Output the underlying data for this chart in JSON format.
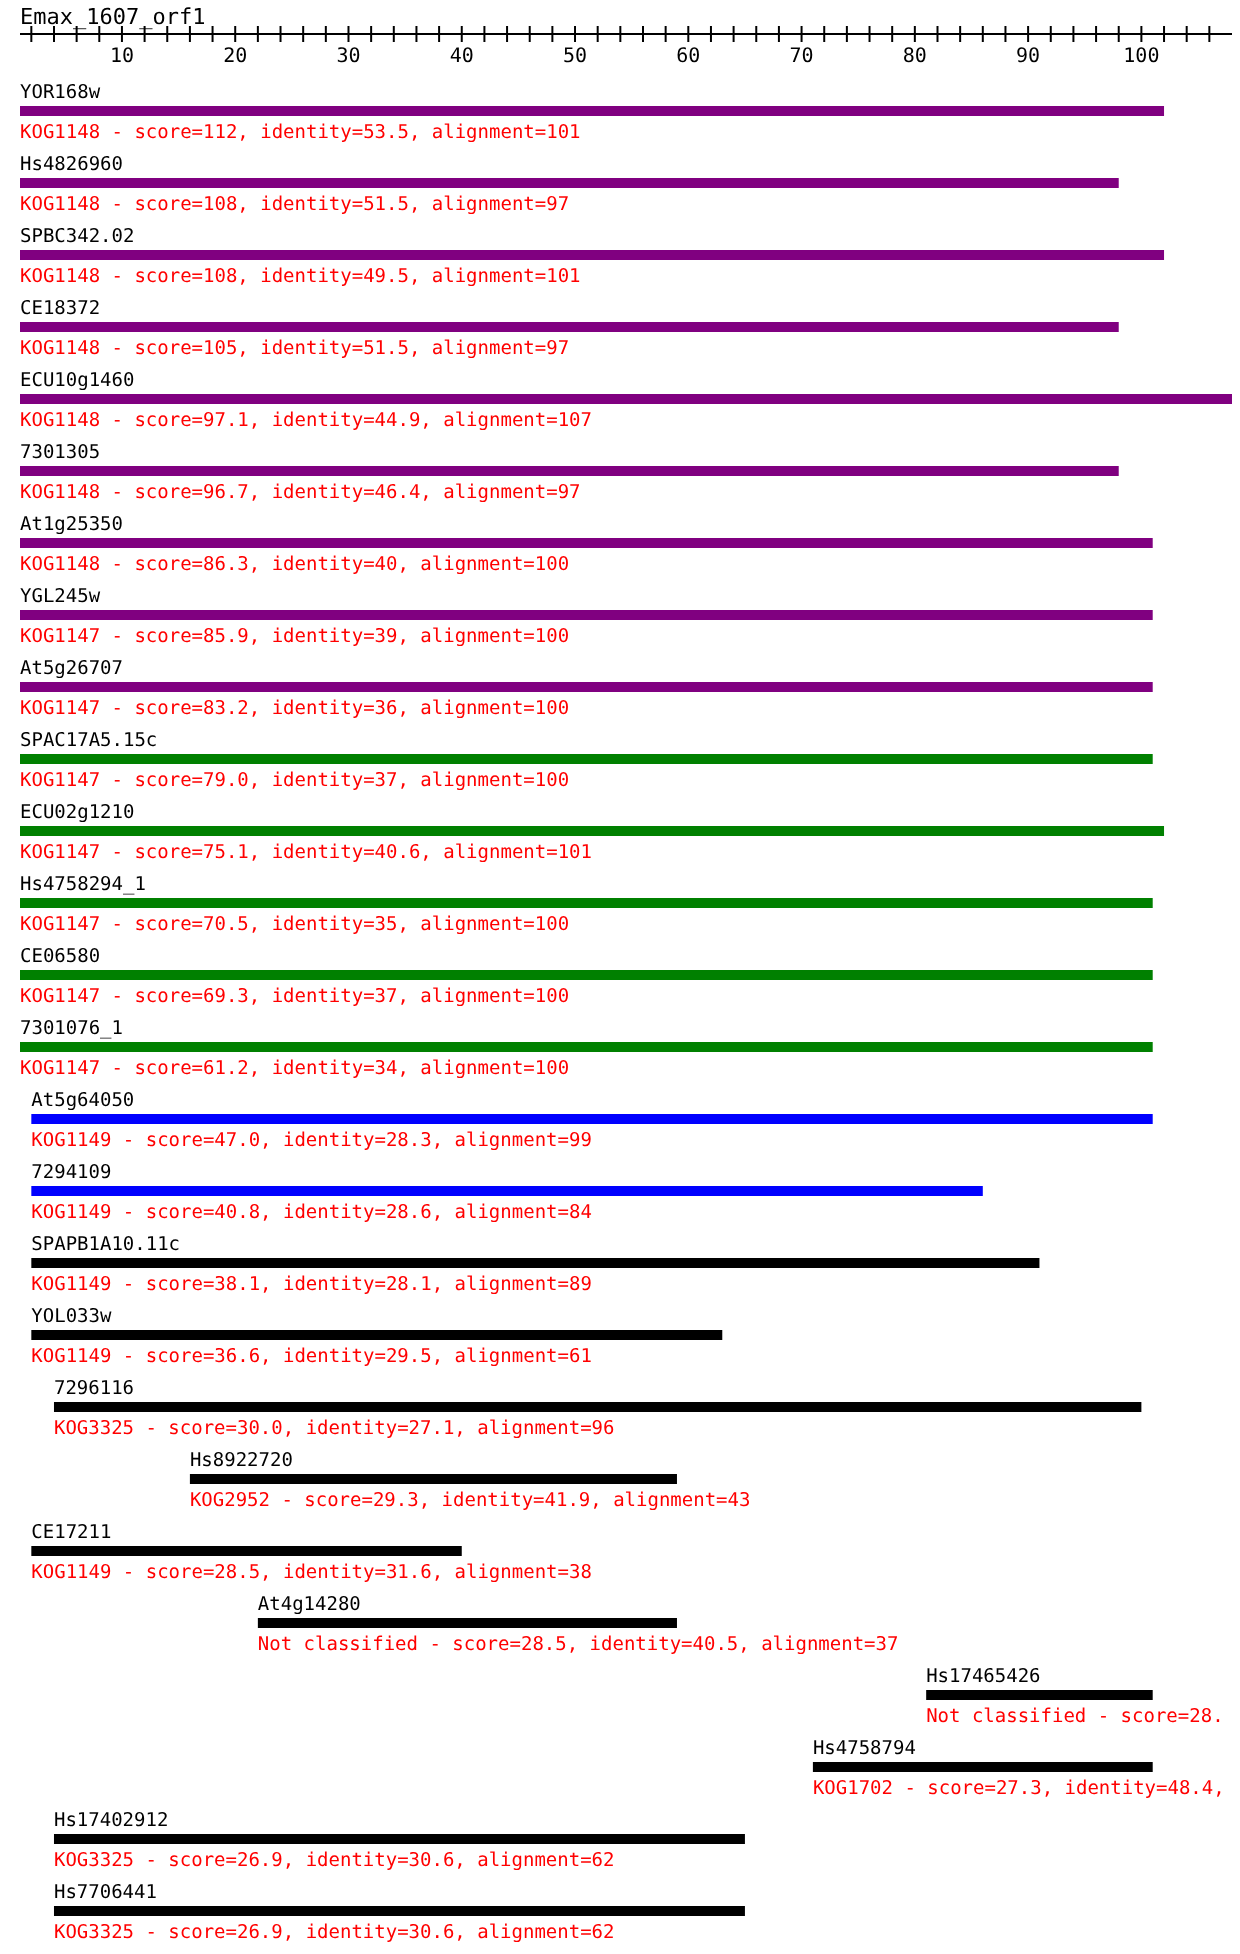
{
  "chart_data": {
    "type": "bar",
    "orientation": "horizontal",
    "title": "Emax_1607_orf1",
    "categories": [
      "YOR168w",
      "Hs4826960",
      "SPBC342.02",
      "CE18372",
      "ECU10g1460",
      "7301305",
      "At1g25350",
      "YGL245w",
      "At5g26707",
      "SPAC17A5.15c",
      "ECU02g1210",
      "Hs4758294_1",
      "CE06580",
      "7301076_1",
      "At5g64050",
      "7294109",
      "SPAPB1A10.11c",
      "YOL033w",
      "7296116",
      "Hs8922720",
      "CE17211",
      "At4g14280",
      "Hs17465426",
      "Hs4758794",
      "Hs17402912",
      "Hs7706441"
    ],
    "base": [
      1,
      1,
      1,
      1,
      1,
      1,
      1,
      1,
      1,
      1,
      1,
      1,
      1,
      1,
      2,
      2,
      2,
      2,
      4,
      16,
      2,
      22,
      81,
      71,
      4,
      4
    ],
    "values": [
      101,
      97,
      101,
      97,
      107,
      97,
      100,
      100,
      100,
      100,
      101,
      100,
      100,
      100,
      99,
      84,
      89,
      61,
      96,
      43,
      38,
      37,
      20,
      30,
      61,
      61
    ],
    "colors": [
      "#800080",
      "#800080",
      "#800080",
      "#800080",
      "#800080",
      "#800080",
      "#800080",
      "#800080",
      "#800080",
      "#008000",
      "#008000",
      "#008000",
      "#008000",
      "#008000",
      "#0000ff",
      "#0000ff",
      "#000000",
      "#000000",
      "#000000",
      "#000000",
      "#000000",
      "#000000",
      "#000000",
      "#000000",
      "#000000",
      "#000000"
    ],
    "annotations": [
      "KOG1148 - score=112, identity=53.5, alignment=101",
      "KOG1148 - score=108, identity=51.5, alignment=97",
      "KOG1148 - score=108, identity=49.5, alignment=101",
      "KOG1148 - score=105, identity=51.5, alignment=97",
      "KOG1148 - score=97.1, identity=44.9, alignment=107",
      "KOG1148 - score=96.7, identity=46.4, alignment=97",
      "KOG1148 - score=86.3, identity=40, alignment=100",
      "KOG1147 - score=85.9, identity=39, alignment=100",
      "KOG1147 - score=83.2, identity=36, alignment=100",
      "KOG1147 - score=79.0, identity=37, alignment=100",
      "KOG1147 - score=75.1, identity=40.6, alignment=101",
      "KOG1147 - score=70.5, identity=35, alignment=100",
      "KOG1147 - score=69.3, identity=37, alignment=100",
      "KOG1147 - score=61.2, identity=34, alignment=100",
      "KOG1149 - score=47.0, identity=28.3, alignment=99",
      "KOG1149 - score=40.8, identity=28.6, alignment=84",
      "KOG1149 - score=38.1, identity=28.1, alignment=89",
      "KOG1149 - score=36.6, identity=29.5, alignment=61",
      "KOG3325 - score=30.0, identity=27.1, alignment=96",
      "KOG2952 - score=29.3, identity=41.9, alignment=43",
      "KOG1149 - score=28.5, identity=31.6, alignment=38",
      "Not classified - score=28.5, identity=40.5, alignment=37",
      "Not classified - score=28.",
      "KOG1702 - score=27.3, identity=48.4,",
      "KOG3325 - score=26.9, identity=30.6, alignment=62",
      "KOG3325 - score=26.9, identity=30.6, alignment=62"
    ],
    "xlim": [
      1,
      108
    ],
    "xticks": [
      {
        "value": 2,
        "label": null
      },
      {
        "value": 4,
        "label": null
      },
      {
        "value": 6,
        "label": null
      },
      {
        "value": 8,
        "label": null
      },
      10,
      {
        "value": 12,
        "label": null
      },
      {
        "value": 14,
        "label": null
      },
      {
        "value": 16,
        "label": null
      },
      {
        "value": 18,
        "label": null
      },
      20,
      {
        "value": 22,
        "label": null
      },
      {
        "value": 24,
        "label": null
      },
      {
        "value": 26,
        "label": null
      },
      {
        "value": 28,
        "label": null
      },
      30,
      {
        "value": 32,
        "label": null
      },
      {
        "value": 34,
        "label": null
      },
      {
        "value": 36,
        "label": null
      },
      {
        "value": 38,
        "label": null
      },
      40,
      {
        "value": 42,
        "label": null
      },
      {
        "value": 44,
        "label": null
      },
      {
        "value": 46,
        "label": null
      },
      {
        "value": 48,
        "label": null
      },
      50,
      {
        "value": 52,
        "label": null
      },
      {
        "value": 54,
        "label": null
      },
      {
        "value": 56,
        "label": null
      },
      {
        "value": 58,
        "label": null
      },
      60,
      {
        "value": 62,
        "label": null
      },
      {
        "value": 64,
        "label": null
      },
      {
        "value": 66,
        "label": null
      },
      {
        "value": 68,
        "label": null
      },
      70,
      {
        "value": 72,
        "label": null
      },
      {
        "value": 74,
        "label": null
      },
      {
        "value": 76,
        "label": null
      },
      {
        "value": 78,
        "label": null
      },
      80,
      {
        "value": 82,
        "label": null
      },
      {
        "value": 84,
        "label": null
      },
      {
        "value": 86,
        "label": null
      },
      {
        "value": 88,
        "label": null
      },
      90,
      {
        "value": 92,
        "label": null
      },
      {
        "value": 94,
        "label": null
      },
      {
        "value": 96,
        "label": null
      },
      {
        "value": 98,
        "label": null
      },
      100,
      {
        "value": 102,
        "label": null
      },
      {
        "value": 104,
        "label": null
      },
      {
        "value": 106,
        "label": null
      }
    ],
    "tick_labels": "x",
    "grid": false,
    "legend": false
  }
}
